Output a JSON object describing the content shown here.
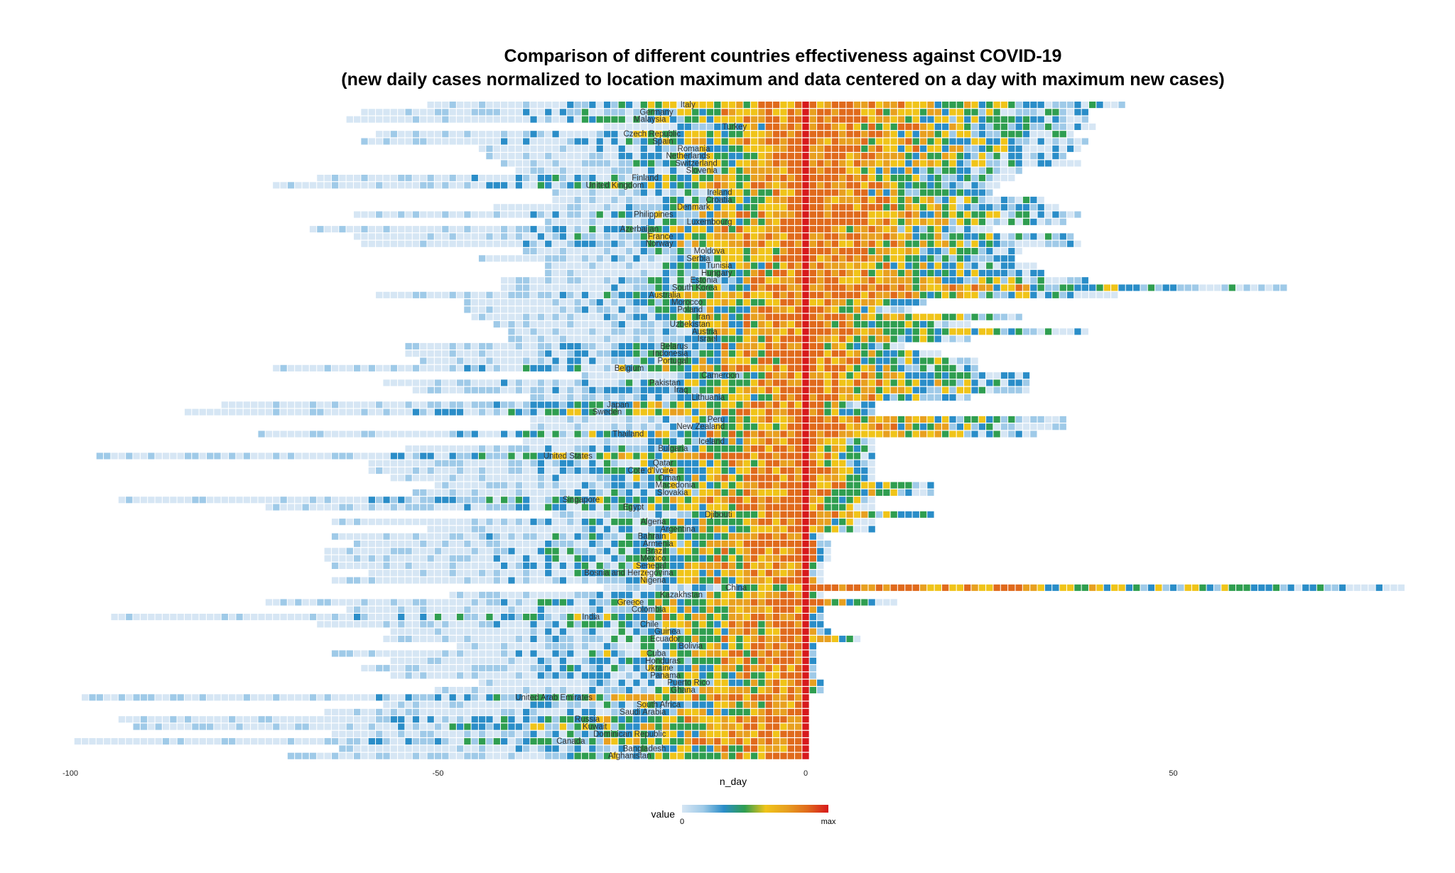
{
  "chart_data": {
    "type": "heatmap",
    "title_line1": "Comparison of different countries effectiveness against COVID-19",
    "title_line2": "(new daily cases normalized to location maximum and data centered on a day with maximum new cases)",
    "xlabel": "n_day",
    "x_ticks": [
      "-100",
      "-50",
      "0",
      "50"
    ],
    "xlim": [
      -100,
      82
    ],
    "legend": {
      "title": "value",
      "min_label": "0",
      "max_label": "max"
    },
    "colors": [
      "#d6e6f4",
      "#9fcae8",
      "#2a8dc8",
      "#2f9e50",
      "#f0c419",
      "#e8a020",
      "#e06a1c",
      "#d7191c"
    ],
    "countries": [
      {
        "name": "Italy",
        "start": -51,
        "end": 43
      },
      {
        "name": "Germany",
        "start": -60,
        "end": 38
      },
      {
        "name": "Malaysia",
        "start": -62,
        "end": 38
      },
      {
        "name": "Turkey",
        "start": -27,
        "end": 39
      },
      {
        "name": "Czech Republic",
        "start": -58,
        "end": 36
      },
      {
        "name": "Spain",
        "start": -60,
        "end": 38
      },
      {
        "name": "Romania",
        "start": -44,
        "end": 37
      },
      {
        "name": "Netherlands",
        "start": -43,
        "end": 35
      },
      {
        "name": "Switzerland",
        "start": -41,
        "end": 37
      },
      {
        "name": "Slovenia",
        "start": -39,
        "end": 29
      },
      {
        "name": "Finland",
        "start": -66,
        "end": 28
      },
      {
        "name": "United Kingdom",
        "start": -72,
        "end": 26
      },
      {
        "name": "Ireland",
        "start": -34,
        "end": 25
      },
      {
        "name": "Croatia",
        "start": -34,
        "end": 32
      },
      {
        "name": "Denmark",
        "start": -42,
        "end": 34
      },
      {
        "name": "Philippines",
        "start": -61,
        "end": 37
      },
      {
        "name": "Luxembourg",
        "start": -35,
        "end": 35
      },
      {
        "name": "Azerbaijan",
        "start": -67,
        "end": 25
      },
      {
        "name": "France",
        "start": -61,
        "end": 36
      },
      {
        "name": "Norway",
        "start": -60,
        "end": 37
      },
      {
        "name": "Moldova",
        "start": -38,
        "end": 29
      },
      {
        "name": "Serbia",
        "start": -44,
        "end": 28
      },
      {
        "name": "Tunisia",
        "start": -35,
        "end": 31
      },
      {
        "name": "Hungary",
        "start": -35,
        "end": 32
      },
      {
        "name": "Estonia",
        "start": -41,
        "end": 38
      },
      {
        "name": "South Korea",
        "start": -41,
        "end": 65
      },
      {
        "name": "Australia",
        "start": -58,
        "end": 42
      },
      {
        "name": "Morocco",
        "start": -46,
        "end": 16
      },
      {
        "name": "Poland",
        "start": -46,
        "end": 14
      },
      {
        "name": "Iran",
        "start": -45,
        "end": 29
      },
      {
        "name": "Uzbekistan",
        "start": -42,
        "end": 22
      },
      {
        "name": "Austria",
        "start": -40,
        "end": 38
      },
      {
        "name": "Israel",
        "start": -40,
        "end": 22
      },
      {
        "name": "Belarus",
        "start": -54,
        "end": 13
      },
      {
        "name": "Indonesia",
        "start": -54,
        "end": 18
      },
      {
        "name": "Portugal",
        "start": -52,
        "end": 23
      },
      {
        "name": "Belgium",
        "start": -72,
        "end": 23
      },
      {
        "name": "Cameroon",
        "start": -30,
        "end": 30
      },
      {
        "name": "Pakistan",
        "start": -57,
        "end": 30
      },
      {
        "name": "Iraq",
        "start": -53,
        "end": 30
      },
      {
        "name": "Lithuania",
        "start": -37,
        "end": 22
      },
      {
        "name": "Japan",
        "start": -79,
        "end": 9
      },
      {
        "name": "Sweden",
        "start": -84,
        "end": 9
      },
      {
        "name": "Peru",
        "start": -37,
        "end": 35
      },
      {
        "name": "New Zealand",
        "start": -37,
        "end": 35
      },
      {
        "name": "Thailand",
        "start": -74,
        "end": 31
      },
      {
        "name": "Iceland",
        "start": -38,
        "end": 9
      },
      {
        "name": "Bulgaria",
        "start": -54,
        "end": 9
      },
      {
        "name": "United States",
        "start": -96,
        "end": 9
      },
      {
        "name": "Qatar",
        "start": -59,
        "end": 9
      },
      {
        "name": "Cote d'Ivoire",
        "start": -59,
        "end": 9
      },
      {
        "name": "Oman",
        "start": -56,
        "end": 9
      },
      {
        "name": "Macedonia",
        "start": -50,
        "end": 17
      },
      {
        "name": "Slovakia",
        "start": -53,
        "end": 17
      },
      {
        "name": "Singapore",
        "start": -93,
        "end": 9
      },
      {
        "name": "Egypt",
        "start": -73,
        "end": 9
      },
      {
        "name": "Djibouti",
        "start": -34,
        "end": 17
      },
      {
        "name": "Algeria",
        "start": -64,
        "end": 9
      },
      {
        "name": "Argentina",
        "start": -51,
        "end": 9
      },
      {
        "name": "Bahrain",
        "start": -64,
        "end": 2
      },
      {
        "name": "Armenia",
        "start": -61,
        "end": 3
      },
      {
        "name": "Brazil",
        "start": -65,
        "end": 3
      },
      {
        "name": "Mexico",
        "start": -65,
        "end": 3
      },
      {
        "name": "Senegal",
        "start": -64,
        "end": 2
      },
      {
        "name": "Bosnia and Herzegovina",
        "start": -59,
        "end": 2
      },
      {
        "name": "Nigeria",
        "start": -64,
        "end": 2
      },
      {
        "name": "China",
        "start": -27,
        "end": 81
      },
      {
        "name": "Kazakhstan",
        "start": -48,
        "end": 2
      },
      {
        "name": "Greece",
        "start": -73,
        "end": 12
      },
      {
        "name": "Colombia",
        "start": -62,
        "end": 2
      },
      {
        "name": "India",
        "start": -94,
        "end": 2
      },
      {
        "name": "Chile",
        "start": -66,
        "end": 2
      },
      {
        "name": "Guinea",
        "start": -56,
        "end": 3
      },
      {
        "name": "Ecuador",
        "start": -57,
        "end": 7
      },
      {
        "name": "Bolivia",
        "start": -47,
        "end": 1
      },
      {
        "name": "Cuba",
        "start": -64,
        "end": 1
      },
      {
        "name": "Honduras",
        "start": -56,
        "end": 1
      },
      {
        "name": "Ukraine",
        "start": -60,
        "end": 1
      },
      {
        "name": "Panama",
        "start": -56,
        "end": 1
      },
      {
        "name": "Puerto Rico",
        "start": -44,
        "end": 2
      },
      {
        "name": "Ghana",
        "start": -50,
        "end": 2
      },
      {
        "name": "United Arab Emirates",
        "start": -98,
        "end": 0
      },
      {
        "name": "South Africa",
        "start": -57,
        "end": 0
      },
      {
        "name": "Saudi Arabia",
        "start": -65,
        "end": 0
      },
      {
        "name": "Russia",
        "start": -93,
        "end": 0
      },
      {
        "name": "Kuwait",
        "start": -91,
        "end": 0
      },
      {
        "name": "Dominican Republic",
        "start": -64,
        "end": 0
      },
      {
        "name": "Canada",
        "start": -99,
        "end": 0
      },
      {
        "name": "Bangladesh",
        "start": -63,
        "end": 0
      },
      {
        "name": "Afghanistan",
        "start": -70,
        "end": 0
      }
    ]
  }
}
